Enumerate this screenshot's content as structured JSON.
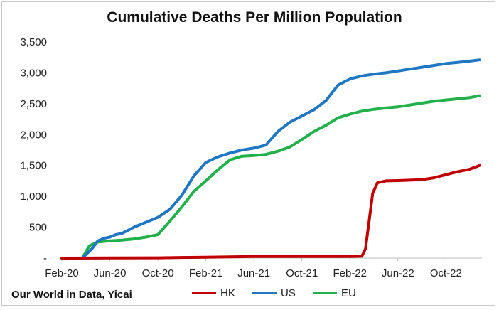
{
  "chart_data": {
    "type": "line",
    "title": "Cumulative Deaths Per Million Population",
    "source": "Our World in Data, Yicai",
    "xlabel": "",
    "ylabel": "",
    "x_ticks": [
      "Feb-20",
      "Jun-20",
      "Oct-20",
      "Feb-21",
      "Jun-21",
      "Oct-21",
      "Feb-22",
      "Jun-22",
      "Oct-22"
    ],
    "y_ticks": [
      "-",
      "500",
      "1,000",
      "1,500",
      "2,000",
      "2,500",
      "3,000",
      "3,500"
    ],
    "ylim": [
      0,
      3500
    ],
    "xlim": [
      0,
      35
    ],
    "grid": "none",
    "legend_position": "bottom",
    "x_units_note": "",
    "series": [
      {
        "name": "HK",
        "color": "#c00000",
        "x": [
          0,
          4,
          8,
          12,
          16,
          20,
          24,
          25,
          25.3,
          25.6,
          25.9,
          26.3,
          27,
          28,
          30,
          31,
          32,
          33,
          34,
          34.8
        ],
        "y": [
          0,
          2,
          5,
          15,
          25,
          25,
          25,
          30,
          150,
          600,
          1050,
          1220,
          1250,
          1255,
          1270,
          1300,
          1350,
          1400,
          1440,
          1500
        ]
      },
      {
        "name": "US",
        "color": "#1f77c4",
        "x": [
          0,
          1.7,
          2.5,
          3,
          3.5,
          4,
          4.5,
          5,
          6,
          7,
          8,
          9,
          10,
          11,
          12,
          13,
          14,
          15,
          16,
          17,
          18,
          19,
          20,
          21,
          22,
          23,
          24,
          25,
          26,
          27,
          28,
          29,
          30,
          31,
          32,
          33,
          34,
          34.8
        ],
        "y": [
          0,
          0,
          150,
          280,
          320,
          340,
          380,
          400,
          500,
          580,
          660,
          790,
          1020,
          1330,
          1550,
          1640,
          1700,
          1750,
          1780,
          1830,
          2050,
          2200,
          2300,
          2400,
          2550,
          2800,
          2900,
          2950,
          2980,
          3000,
          3030,
          3060,
          3090,
          3120,
          3150,
          3170,
          3190,
          3210
        ]
      },
      {
        "name": "EU",
        "color": "#22b04a",
        "x": [
          0,
          1.7,
          2.3,
          3,
          4,
          5,
          6,
          7,
          8,
          9,
          10,
          11,
          12,
          13,
          14,
          15,
          16,
          17,
          18,
          19,
          20,
          21,
          22,
          23,
          24,
          25,
          26,
          27,
          28,
          29,
          30,
          31,
          32,
          33,
          34,
          34.8
        ],
        "y": [
          0,
          0,
          200,
          260,
          280,
          290,
          310,
          340,
          380,
          600,
          830,
          1080,
          1250,
          1430,
          1590,
          1650,
          1660,
          1680,
          1730,
          1800,
          1920,
          2050,
          2150,
          2270,
          2330,
          2380,
          2410,
          2430,
          2450,
          2480,
          2510,
          2540,
          2560,
          2580,
          2600,
          2630
        ]
      }
    ]
  }
}
